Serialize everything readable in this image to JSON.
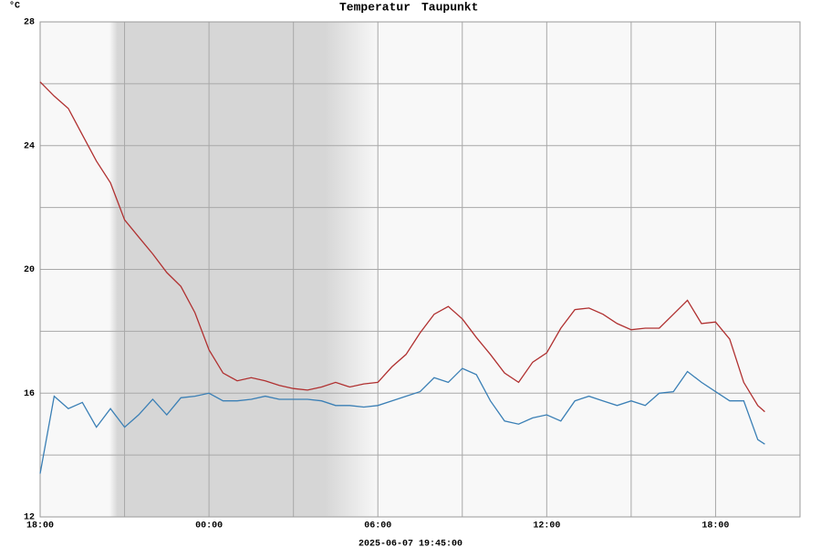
{
  "chart_data": {
    "type": "line",
    "series": [
      {
        "name": "Temperatur",
        "color": "#b03030",
        "values": [
          26.06,
          25.6,
          25.2,
          24.35,
          23.5,
          22.8,
          21.6,
          21.05,
          20.5,
          19.9,
          19.45,
          18.6,
          17.4,
          16.65,
          16.4,
          16.5,
          16.4,
          16.25,
          16.15,
          16.1,
          16.2,
          16.35,
          16.2,
          16.3,
          16.35,
          16.85,
          17.25,
          17.95,
          18.55,
          18.8,
          18.4,
          17.8,
          17.25,
          16.65,
          16.35,
          17.0,
          17.3,
          18.1,
          18.7,
          18.75,
          18.55,
          18.25,
          18.05,
          18.1,
          18.1,
          18.55,
          19.0,
          18.25,
          18.3,
          17.75,
          16.35,
          15.6,
          15.4
        ]
      },
      {
        "name": "Taupunkt",
        "color": "#3a7fb5",
        "values": [
          13.4,
          15.9,
          15.5,
          15.7,
          14.9,
          15.5,
          14.9,
          15.3,
          15.8,
          15.3,
          15.85,
          15.9,
          16.0,
          15.75,
          15.75,
          15.8,
          15.9,
          15.8,
          15.8,
          15.8,
          15.75,
          15.6,
          15.6,
          15.55,
          15.6,
          15.75,
          15.9,
          16.05,
          16.5,
          16.35,
          16.8,
          16.6,
          15.75,
          15.1,
          15.0,
          15.2,
          15.3,
          15.1,
          15.75,
          15.9,
          15.75,
          15.6,
          15.75,
          15.6,
          16.0,
          16.05,
          16.7,
          16.35,
          16.05,
          15.75,
          15.75,
          14.5,
          14.35
        ]
      }
    ],
    "x": [
      18,
      18.5,
      19,
      19.5,
      20,
      20.5,
      21,
      21.5,
      22,
      22.5,
      23,
      23.5,
      24,
      24.5,
      25,
      25.5,
      26,
      26.5,
      27,
      27.5,
      28,
      28.5,
      29,
      29.5,
      30,
      30.5,
      31,
      31.5,
      32,
      32.5,
      33,
      33.5,
      34,
      34.5,
      35,
      35.5,
      36,
      36.5,
      37,
      37.5,
      38,
      38.5,
      39,
      39.5,
      40,
      40.5,
      41,
      41.5,
      42,
      42.5,
      43,
      43.5,
      43.75
    ],
    "xlim": [
      18,
      45
    ],
    "xticks": [
      {
        "value": 18,
        "label": "18:00"
      },
      {
        "value": 21,
        "label": null
      },
      {
        "value": 24,
        "label": "00:00"
      },
      {
        "value": 27,
        "label": null
      },
      {
        "value": 30,
        "label": "06:00"
      },
      {
        "value": 33,
        "label": null
      },
      {
        "value": 36,
        "label": "12:00"
      },
      {
        "value": 39,
        "label": null
      },
      {
        "value": 42,
        "label": "18:00"
      }
    ],
    "ylim": [
      12,
      28
    ],
    "yticks": [
      12,
      {
        "value": 14,
        "label": null
      },
      16,
      {
        "value": 18,
        "label": null
      },
      20,
      {
        "value": 22,
        "label": null
      },
      24,
      {
        "value": 26,
        "label": null
      },
      28
    ],
    "ylabel": "°C",
    "xlabel": "2025-06-07 19:45:00",
    "grid": true
  }
}
